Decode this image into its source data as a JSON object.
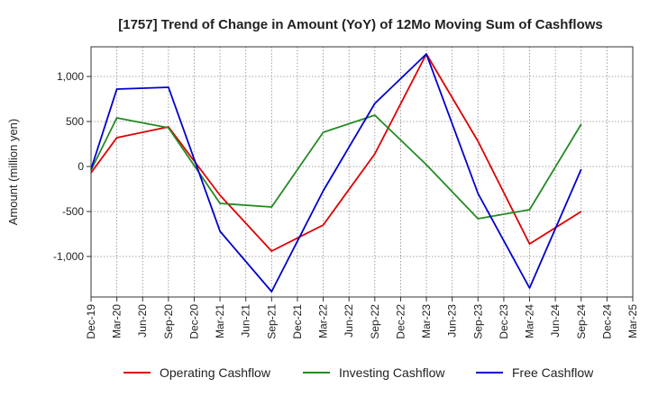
{
  "chart_data": {
    "type": "line",
    "title": "[1757]  Trend of Change in Amount (YoY) of 12Mo Moving Sum of Cashflows",
    "xlabel": "",
    "ylabel": "Amount (million yen)",
    "categories": [
      "Dec-19",
      "Mar-20",
      "Jun-20",
      "Sep-20",
      "Dec-20",
      "Mar-21",
      "Jun-21",
      "Sep-21",
      "Dec-21",
      "Mar-22",
      "Jun-22",
      "Sep-22",
      "Dec-22",
      "Mar-23",
      "Jun-23",
      "Sep-23",
      "Dec-23",
      "Mar-24",
      "Jun-24",
      "Sep-24",
      "Dec-24",
      "Mar-25"
    ],
    "x_tick_labels": [
      "Dec-19",
      "Mar-20",
      "Jun-20",
      "Sep-20",
      "Dec-20",
      "Mar-21",
      "Jun-21",
      "Sep-21",
      "Dec-21",
      "Mar-22",
      "Jun-22",
      "Sep-22",
      "Dec-22",
      "Mar-23",
      "Jun-23",
      "Sep-23",
      "Dec-23",
      "Mar-24",
      "Jun-24",
      "Sep-24",
      "Dec-24",
      "Mar-25"
    ],
    "y_ticks": [
      1000,
      500,
      0,
      -500,
      -1000
    ],
    "y_tick_labels": [
      "1,000",
      "500",
      "0",
      "-500",
      "-1,000"
    ],
    "ylim": [
      -1450,
      1330
    ],
    "grid": true,
    "legend_position": "bottom",
    "series": [
      {
        "name": "Operating Cashflow",
        "color": "#dd0000",
        "points": [
          [
            0,
            -70
          ],
          [
            1,
            320
          ],
          [
            3,
            440
          ],
          [
            5,
            -320
          ],
          [
            7,
            -940
          ],
          [
            9,
            -650
          ],
          [
            11,
            140
          ],
          [
            13,
            1250
          ],
          [
            15,
            280
          ],
          [
            17,
            -860
          ],
          [
            19,
            -500
          ]
        ]
      },
      {
        "name": "Investing Cashflow",
        "color": "#228b22",
        "points": [
          [
            0,
            -40
          ],
          [
            1,
            540
          ],
          [
            3,
            430
          ],
          [
            5,
            -410
          ],
          [
            7,
            -450
          ],
          [
            9,
            380
          ],
          [
            11,
            570
          ],
          [
            13,
            20
          ],
          [
            15,
            -580
          ],
          [
            17,
            -480
          ],
          [
            19,
            470
          ]
        ]
      },
      {
        "name": "Free Cashflow",
        "color": "#0000cc",
        "points": [
          [
            0,
            -30
          ],
          [
            1,
            860
          ],
          [
            3,
            880
          ],
          [
            5,
            -720
          ],
          [
            7,
            -1390
          ],
          [
            9,
            -270
          ],
          [
            11,
            700
          ],
          [
            13,
            1250
          ],
          [
            15,
            -300
          ],
          [
            17,
            -1350
          ],
          [
            19,
            -30
          ]
        ]
      }
    ]
  }
}
